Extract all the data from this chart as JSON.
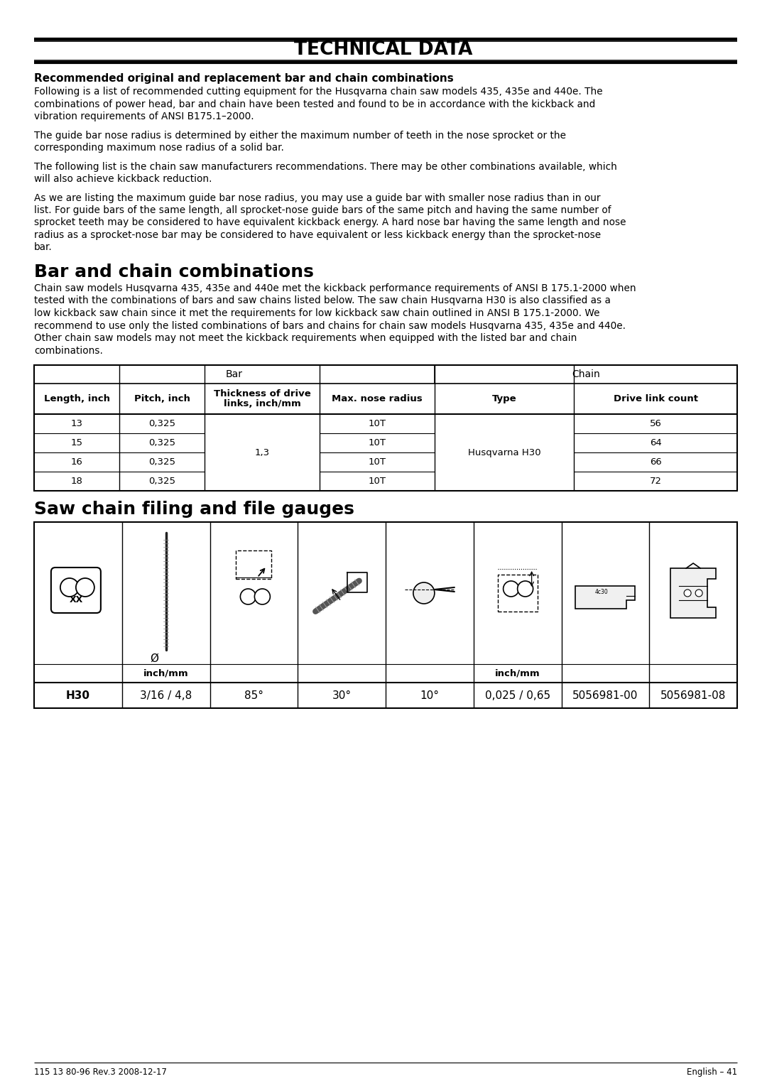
{
  "title": "TECHNICAL DATA",
  "section1_title": "Recommended original and replacement bar and chain combinations",
  "section1_para1": "Following is a list of recommended cutting equipment for the Husqvarna chain saw models 435, 435e and 440e. The combinations of power head, bar and chain have been tested and found to be in accordance with the kickback and vibration requirements of ANSI B175.1–2000.",
  "section1_para2": "The guide bar nose radius is determined by either the maximum number of teeth in the nose sprocket or the corresponding maximum nose radius of a solid bar.",
  "section1_para3": "The following list is the chain saw manufacturers recommendations. There may be other combinations available, which will also achieve kickback reduction.",
  "section1_para4": "As we are listing the maximum guide bar nose radius, you may use a guide bar with smaller nose radius than in our list. For guide bars of the same length, all sprocket-nose guide bars of the same pitch and having the same number of sprocket teeth may be considered to have equivalent kickback energy. A hard nose bar having the same length and nose radius as a sprocket-nose bar may be considered to have equivalent or less kickback energy than the sprocket-nose bar.",
  "section2_title": "Bar and chain combinations",
  "section2_para1": "Chain saw models Husqvarna 435, 435e and 440e met the kickback performance requirements of ANSI B 175.1-2000 when tested with the combinations of bars and saw chains listed below. The saw chain Husqvarna H30 is also classified as a low kickback saw chain since it met the requirements for low kickback saw chain outlined in ANSI B 175.1-2000. We recommend to use only the listed combinations of bars and chains for chain saw models Husqvarna 435, 435e and 440e. Other chain saw models may not meet the kickback requirements when equipped with the listed bar and chain combinations.",
  "table1_col_headers": [
    "Length, inch",
    "Pitch, inch",
    "Thickness of drive\nlinks, inch/mm",
    "Max. nose radius",
    "Type",
    "Drive link count"
  ],
  "table1_data": [
    [
      "13",
      "0,325",
      "1,3",
      "10T",
      "Husqvarna H30",
      "56"
    ],
    [
      "15",
      "0,325",
      "1,3",
      "10T",
      "Husqvarna H30",
      "64"
    ],
    [
      "16",
      "0,325",
      "1,3",
      "10T",
      "Husqvarna H30",
      "66"
    ],
    [
      "18",
      "0,325",
      "1,3",
      "10T",
      "Husqvarna H30",
      "72"
    ]
  ],
  "section3_title": "Saw chain filing and file gauges",
  "filing_labels": [
    "H30",
    "3/16 / 4,8",
    "85°",
    "30°",
    "10°",
    "0,025 / 0,65",
    "5056981-00",
    "5056981-08"
  ],
  "filing_subtext_col2": "inch/mm",
  "filing_subtext_col6": "inch/mm",
  "footer_left": "115 13 80-96 Rev.3 2008-12-17",
  "footer_right": "English – 41",
  "bar_group_header": "Bar",
  "chain_group_header": "Chain",
  "bg_color": "#ffffff"
}
